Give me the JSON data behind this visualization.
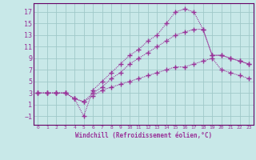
{
  "xlabel": "Windchill (Refroidissement éolien,°C)",
  "bg_color": "#c8e8e8",
  "grid_color": "#a0c8c8",
  "line_color": "#993399",
  "spine_color": "#660066",
  "xlim": [
    -0.5,
    23.5
  ],
  "ylim": [
    -2.5,
    18.5
  ],
  "yticks": [
    -1,
    1,
    3,
    5,
    7,
    9,
    11,
    13,
    15,
    17
  ],
  "xticks": [
    0,
    1,
    2,
    3,
    4,
    5,
    6,
    7,
    8,
    9,
    10,
    11,
    12,
    13,
    14,
    15,
    16,
    17,
    18,
    19,
    20,
    21,
    22,
    23
  ],
  "line1_x": [
    0,
    1,
    2,
    3,
    4,
    5,
    6,
    7,
    8,
    9,
    10,
    11,
    12,
    13,
    14,
    15,
    16,
    17,
    18,
    19,
    20,
    21,
    22,
    23
  ],
  "line1_y": [
    3,
    3,
    3,
    3,
    2,
    -1,
    3.5,
    5,
    6.5,
    8,
    9.5,
    10.5,
    12,
    13,
    15,
    17,
    17.5,
    17,
    14,
    9.5,
    9.5,
    9,
    8.5,
    8
  ],
  "line2_x": [
    0,
    1,
    2,
    3,
    4,
    5,
    6,
    7,
    8,
    9,
    10,
    11,
    12,
    13,
    14,
    15,
    16,
    17,
    18,
    19,
    20,
    21,
    22,
    23
  ],
  "line2_y": [
    3,
    3,
    3,
    3,
    2,
    1.5,
    3,
    4,
    5.5,
    6.5,
    8,
    9,
    10,
    11,
    12,
    13,
    13.5,
    14,
    14,
    9.5,
    9.5,
    9,
    8.5,
    8
  ],
  "line3_x": [
    0,
    1,
    2,
    3,
    4,
    5,
    6,
    7,
    8,
    9,
    10,
    11,
    12,
    13,
    14,
    15,
    16,
    17,
    18,
    19,
    20,
    21,
    22,
    23
  ],
  "line3_y": [
    3,
    3,
    3,
    3,
    2,
    1.5,
    2.5,
    3.5,
    4,
    4.5,
    5,
    5.5,
    6,
    6.5,
    7,
    7.5,
    7.5,
    8,
    8.5,
    9,
    7,
    6.5,
    6,
    5.5
  ]
}
